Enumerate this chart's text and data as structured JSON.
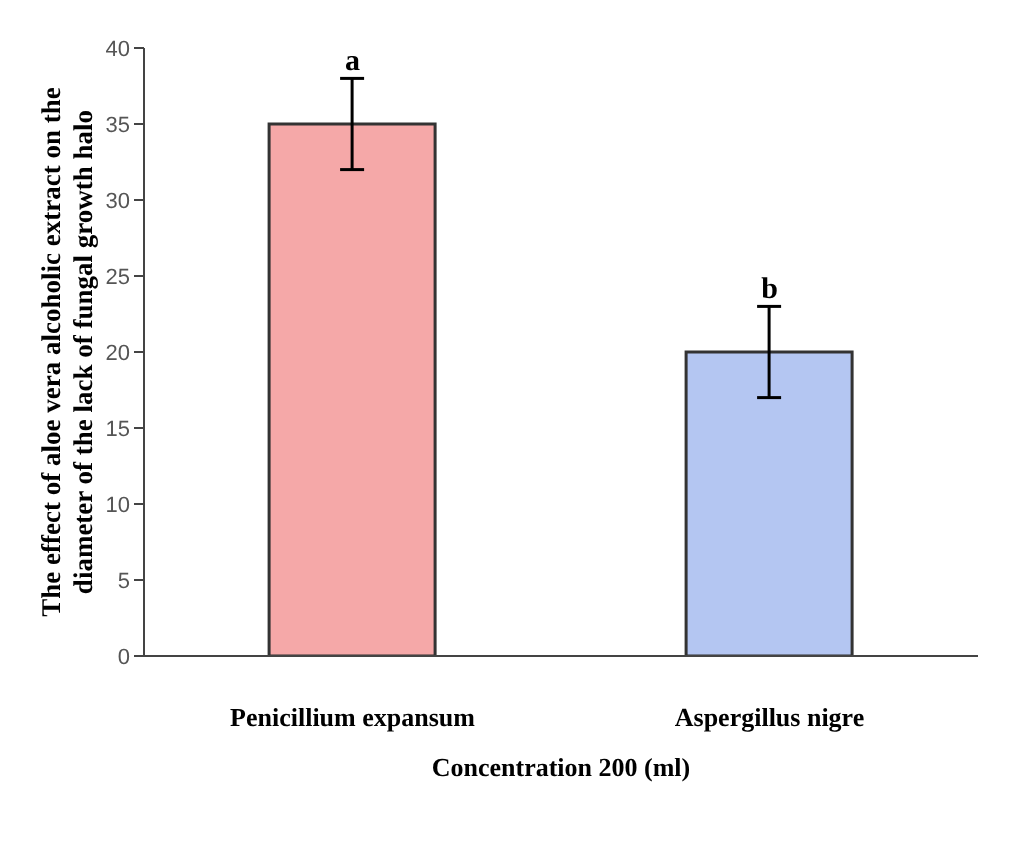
{
  "chart_data": {
    "type": "bar",
    "xlabel": "Concentration 200 (ml)",
    "ylabel": "The effect of aloe vera alcoholic extract on the diameter of the lack of fungal growth halo",
    "categories": [
      "Penicillium expansum",
      "Aspergillus nigre"
    ],
    "values": [
      35,
      20
    ],
    "colors": [
      "#f5a8a8",
      "#b4c6f2"
    ],
    "errors": [
      3,
      3
    ],
    "ylim": [
      0,
      40
    ],
    "yticks": [
      0,
      5,
      10,
      15,
      20,
      25,
      30,
      35,
      40
    ],
    "grid": false,
    "legend": false,
    "annotations": [
      {
        "text": "a",
        "x": "Penicillium expansum",
        "y": 38
      },
      {
        "text": "b",
        "x": "Aspergillus nigre",
        "y": 23
      }
    ]
  }
}
